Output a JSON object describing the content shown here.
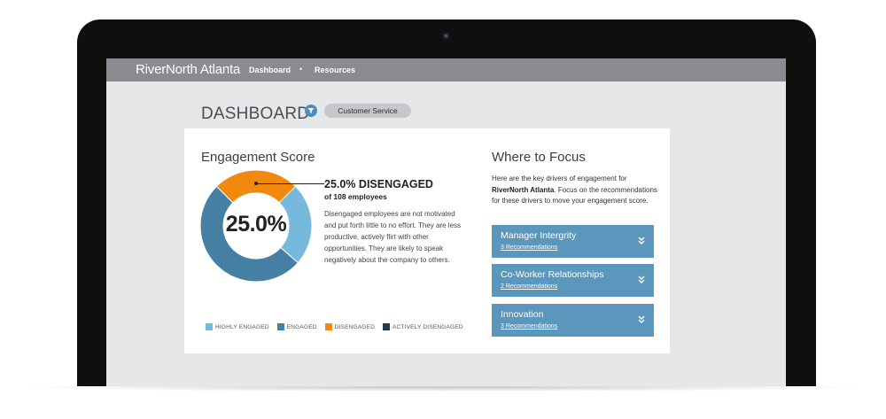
{
  "topbar": {
    "brand": "RiverNorth Atlanta",
    "nav": [
      {
        "label": "Dashboard"
      },
      {
        "label": "Resources"
      }
    ],
    "separator": "•"
  },
  "page": {
    "title": "DASHBOARD",
    "filter_icon": "filter-icon",
    "filter_value": "Customer Service"
  },
  "engagement": {
    "heading": "Engagement Score",
    "center_value": "25.0%",
    "stat_title": "25.0% DISENGAGED",
    "stat_sub": "of 108 employees",
    "description": "Disengaged employees are not motivated and put forth little to no effort. They are less productive, actively flirt with other opportunities. They are likely to speak negatively about the company to others.",
    "chart_data": {
      "type": "pie",
      "donut": true,
      "highlighted": "DISENGAGED",
      "slices": [
        {
          "name": "DISENGAGED",
          "value": 25.0,
          "color": "#f2890f"
        },
        {
          "name": "HIGHLY ENGAGED",
          "value": 24.0,
          "color": "#77b9dc"
        },
        {
          "name": "ENGAGED",
          "value": 51.0,
          "color": "#457fa3"
        }
      ],
      "legend": [
        {
          "label": "HIGHLY ENGAGED",
          "color": "#77b9dc"
        },
        {
          "label": "ENGAGED",
          "color": "#457fa3"
        },
        {
          "label": "DISENGAGED",
          "color": "#f2890f"
        },
        {
          "label": "ACTIVELY DISENGAGED",
          "color": "#243a52"
        }
      ],
      "legend_position": "bottom"
    }
  },
  "focus": {
    "heading": "Where to Focus",
    "desc_pre": "Here are the key drivers of engagement for ",
    "desc_bold": "RiverNorth Atlanta",
    "desc_post": ". Focus on the recommendations for these drivers to move your engagement score.",
    "drivers": [
      {
        "title": "Manager Intergrity",
        "link": "3 Recommendations"
      },
      {
        "title": "Co-Worker Relationships",
        "link": "2 Recommendations"
      },
      {
        "title": "Innovation",
        "link": "3 Recommendations"
      }
    ],
    "chevron_icon": "double-chevron-down-icon"
  }
}
